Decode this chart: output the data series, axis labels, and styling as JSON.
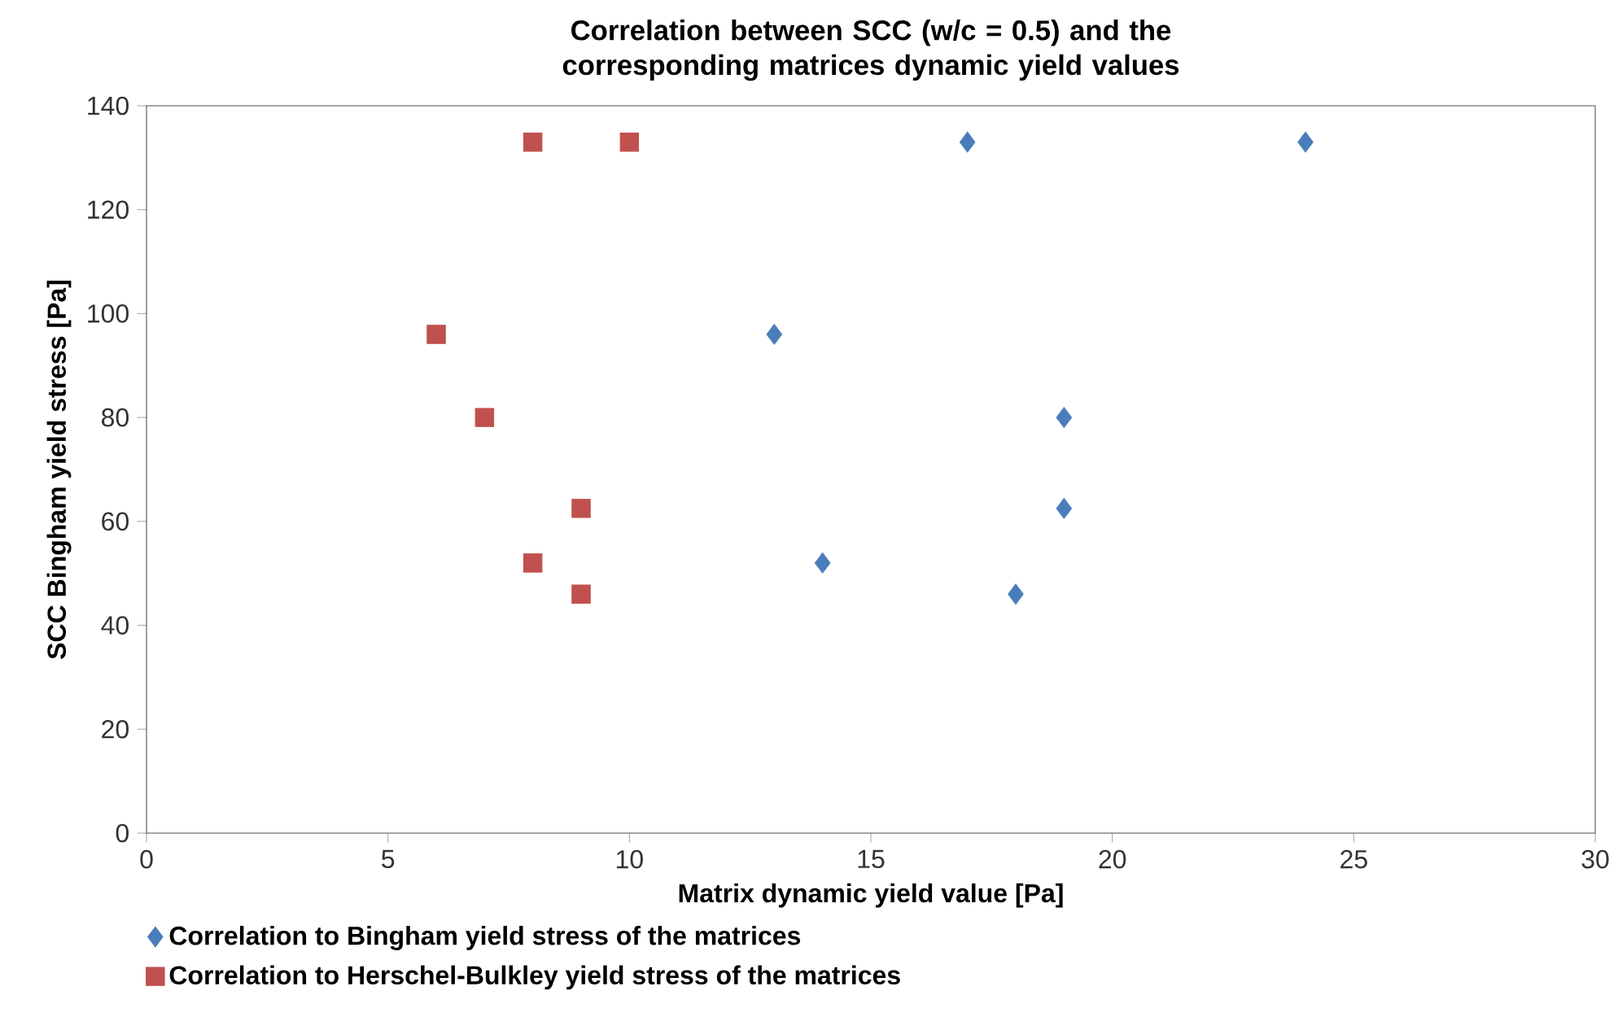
{
  "chart_data": {
    "type": "scatter",
    "title": "Correlation between SCC (w/c = 0.5) and the corresponding matrices dynamic yield values",
    "xlabel": "Matrix dynamic yield value [Pa]",
    "ylabel": "SCC Bingham yield stress [Pa]",
    "xlim": [
      0,
      30
    ],
    "xticks": [
      0,
      5,
      10,
      15,
      20,
      25,
      30
    ],
    "ylim": [
      0,
      140
    ],
    "yticks": [
      0,
      20,
      40,
      60,
      80,
      100,
      120,
      140
    ],
    "grid": false,
    "legend": "bottom",
    "series": [
      {
        "name": "Correlation to Bingham yield stress of the matrices",
        "color": "#4a7ebb",
        "marker": "diamond",
        "x": [
          17,
          24,
          13,
          19,
          19,
          14,
          18
        ],
        "values": [
          133,
          133,
          96,
          80,
          62.5,
          52,
          46
        ]
      },
      {
        "name": "Correlation to Herschel-Bulkley yield stress of the matrices",
        "color": "#c0504d",
        "marker": "square",
        "x": [
          8,
          10,
          6,
          7,
          9,
          8,
          9
        ],
        "values": [
          133,
          133,
          96,
          80,
          62.5,
          52,
          46
        ]
      }
    ]
  }
}
